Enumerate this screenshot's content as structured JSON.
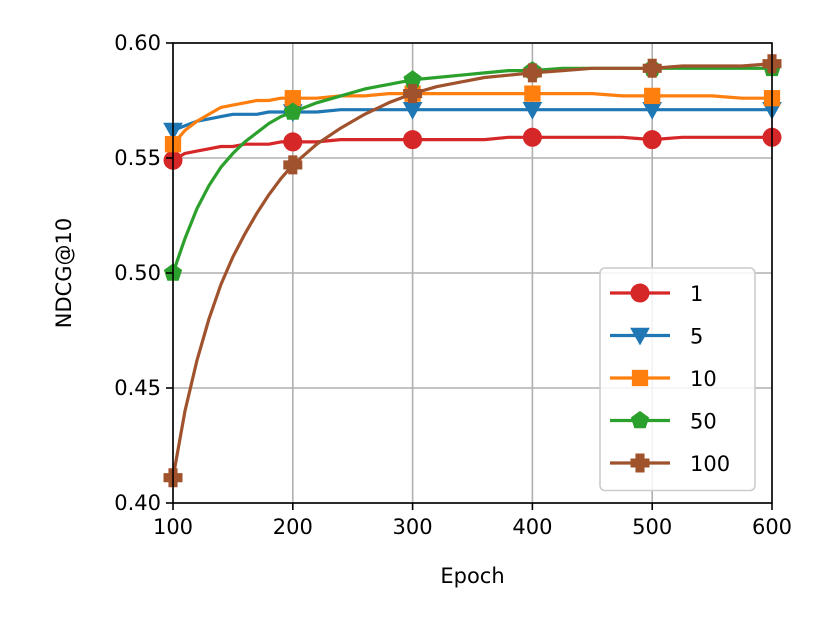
{
  "chart_data": {
    "type": "line",
    "xlabel": "Epoch",
    "ylabel": "NDCG@10",
    "xlim": [
      100,
      600
    ],
    "ylim": [
      0.4,
      0.6
    ],
    "xticks": [
      "100",
      "200",
      "300",
      "400",
      "500",
      "600"
    ],
    "yticks": [
      "0.40",
      "0.45",
      "0.50",
      "0.55",
      "0.60"
    ],
    "grid": true,
    "legend_position": "lower-right",
    "x": [
      100,
      110,
      120,
      130,
      140,
      150,
      160,
      170,
      180,
      190,
      200,
      220,
      240,
      260,
      280,
      300,
      320,
      340,
      360,
      380,
      400,
      425,
      450,
      475,
      500,
      525,
      550,
      575,
      600
    ],
    "markers_at": [
      100,
      200,
      300,
      400,
      500,
      600
    ],
    "series": [
      {
        "name": "1",
        "color": "#d62728",
        "marker": "circle",
        "values": [
          0.549,
          0.552,
          0.553,
          0.554,
          0.555,
          0.555,
          0.556,
          0.556,
          0.556,
          0.557,
          0.557,
          0.557,
          0.558,
          0.558,
          0.558,
          0.558,
          0.558,
          0.558,
          0.558,
          0.559,
          0.559,
          0.559,
          0.559,
          0.559,
          0.558,
          0.559,
          0.559,
          0.559,
          0.559
        ]
      },
      {
        "name": "5",
        "color": "#1f77b4",
        "marker": "triangle-down",
        "values": [
          0.562,
          0.564,
          0.566,
          0.567,
          0.568,
          0.569,
          0.569,
          0.569,
          0.57,
          0.57,
          0.57,
          0.57,
          0.571,
          0.571,
          0.571,
          0.571,
          0.571,
          0.571,
          0.571,
          0.571,
          0.571,
          0.571,
          0.571,
          0.571,
          0.571,
          0.571,
          0.571,
          0.571,
          0.571
        ]
      },
      {
        "name": "10",
        "color": "#ff7f0e",
        "marker": "square",
        "values": [
          0.556,
          0.562,
          0.566,
          0.569,
          0.572,
          0.573,
          0.574,
          0.575,
          0.575,
          0.576,
          0.576,
          0.576,
          0.577,
          0.577,
          0.578,
          0.578,
          0.578,
          0.578,
          0.578,
          0.578,
          0.578,
          0.578,
          0.578,
          0.577,
          0.577,
          0.577,
          0.577,
          0.576,
          0.576
        ]
      },
      {
        "name": "50",
        "color": "#2ca02c",
        "marker": "pentagon",
        "values": [
          0.5,
          0.515,
          0.528,
          0.538,
          0.546,
          0.552,
          0.557,
          0.561,
          0.565,
          0.568,
          0.57,
          0.574,
          0.577,
          0.58,
          0.582,
          0.584,
          0.585,
          0.586,
          0.587,
          0.588,
          0.588,
          0.589,
          0.589,
          0.589,
          0.589,
          0.589,
          0.589,
          0.589,
          0.589
        ]
      },
      {
        "name": "100",
        "color": "#a0522d",
        "marker": "plus",
        "values": [
          0.411,
          0.44,
          0.462,
          0.48,
          0.495,
          0.507,
          0.517,
          0.526,
          0.534,
          0.541,
          0.547,
          0.556,
          0.563,
          0.569,
          0.574,
          0.578,
          0.581,
          0.583,
          0.585,
          0.586,
          0.587,
          0.588,
          0.589,
          0.589,
          0.589,
          0.59,
          0.59,
          0.59,
          0.591
        ]
      }
    ]
  }
}
